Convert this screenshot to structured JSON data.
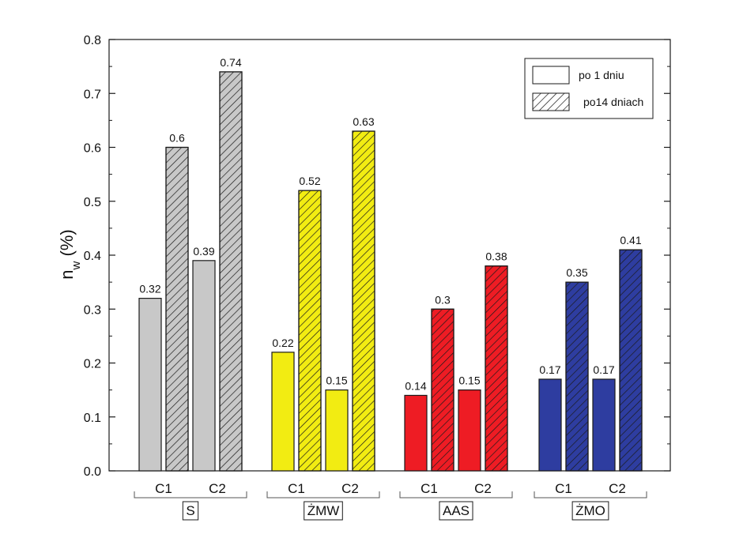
{
  "chart_data": {
    "type": "bar",
    "ylabel_main": "n",
    "ylabel_sub": "w",
    "ylabel_suffix": " (%)",
    "ylim": [
      0,
      0.8
    ],
    "yticks": [
      "0.0",
      "0.1",
      "0.2",
      "0.3",
      "0.4",
      "0.5",
      "0.6",
      "0.7",
      "0.8"
    ],
    "grid": false,
    "legend_position": "top-right",
    "series": [
      {
        "name": "po 1 dniu",
        "pattern": "solid"
      },
      {
        "name": "po14 dniach",
        "pattern": "hatched"
      }
    ],
    "groups": [
      {
        "name": "S",
        "color": "#c8c8c8",
        "subgroups": [
          {
            "name": "C1",
            "values": [
              0.32,
              0.6
            ],
            "labels": [
              "0.32",
              "0.6"
            ]
          },
          {
            "name": "C2",
            "values": [
              0.39,
              0.74
            ],
            "labels": [
              "0.39",
              "0.74"
            ]
          }
        ]
      },
      {
        "name": "ŻMW",
        "color": "#f2ec12",
        "subgroups": [
          {
            "name": "C1",
            "values": [
              0.22,
              0.52
            ],
            "labels": [
              "0.22",
              "0.52"
            ]
          },
          {
            "name": "C2",
            "values": [
              0.15,
              0.63
            ],
            "labels": [
              "0.15",
              "0.63"
            ]
          }
        ]
      },
      {
        "name": "AAS",
        "color": "#ee1c24",
        "subgroups": [
          {
            "name": "C1",
            "values": [
              0.14,
              0.3
            ],
            "labels": [
              "0.14",
              "0.3"
            ]
          },
          {
            "name": "C2",
            "values": [
              0.15,
              0.38
            ],
            "labels": [
              "0.15",
              "0.38"
            ]
          }
        ]
      },
      {
        "name": "ŻMO",
        "color": "#2e3da0",
        "subgroups": [
          {
            "name": "C1",
            "values": [
              0.17,
              0.35
            ],
            "labels": [
              "0.17",
              "0.35"
            ]
          },
          {
            "name": "C2",
            "values": [
              0.17,
              0.41
            ],
            "labels": [
              "0.17",
              "0.41"
            ]
          }
        ]
      }
    ]
  }
}
